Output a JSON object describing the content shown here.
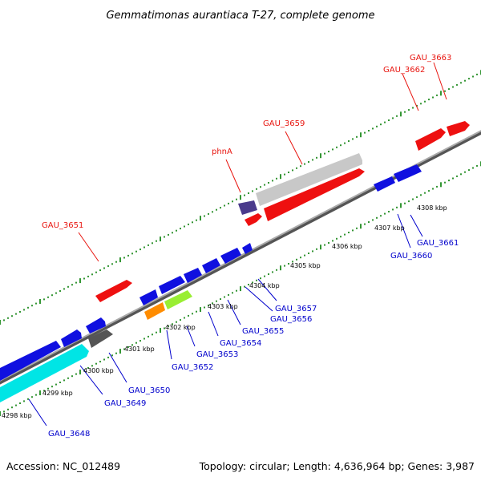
{
  "title": "Gemmatimonas aurantiaca T-27, complete genome",
  "footer": {
    "accession": "Accession: NC_012489",
    "topology": "Topology: circular; Length: 4,636,964 bp; Genes: 3,987"
  },
  "colors": {
    "forward_label": "#e8150f",
    "reverse_label": "#0000cc",
    "backbone": "#777777",
    "ticks": "#1f8a1f"
  },
  "ticks": [
    {
      "label": "4298 kbp"
    },
    {
      "label": "4299 kbp"
    },
    {
      "label": "4300 kbp"
    },
    {
      "label": "4301 kbp"
    },
    {
      "label": "4302 kbp"
    },
    {
      "label": "4303 kbp"
    },
    {
      "label": "4304 kbp"
    },
    {
      "label": "4305 kbp"
    },
    {
      "label": "4306 kbp"
    },
    {
      "label": "4307 kbp"
    },
    {
      "label": "4308 kbp"
    }
  ],
  "genes_forward": [
    {
      "label": "GAU_3651",
      "color": "#ee1010"
    },
    {
      "label": "phnA",
      "color": "#ee1010"
    },
    {
      "label": "GAU_3659",
      "color": "#c8c8c8"
    },
    {
      "label": "GAU_3662",
      "color": "#ee1010"
    },
    {
      "label": "GAU_3663",
      "color": "#ee1010"
    }
  ],
  "genes_reverse": [
    {
      "label": "GAU_3648",
      "color": "#00e5e5"
    },
    {
      "label": "GAU_3649",
      "color": "#1010e0"
    },
    {
      "label": "GAU_3650",
      "color": "#555555"
    },
    {
      "label": "GAU_3652",
      "color": "#ff8c00"
    },
    {
      "label": "GAU_3653",
      "color": "#99ee33"
    },
    {
      "label": "GAU_3654",
      "color": "#1010e0"
    },
    {
      "label": "GAU_3655",
      "color": "#1010e0"
    },
    {
      "label": "GAU_3656",
      "color": "#1010e0"
    },
    {
      "label": "GAU_3657",
      "color": "#1010e0"
    },
    {
      "label": "GAU_3660",
      "color": "#1010e0"
    },
    {
      "label": "GAU_3661",
      "color": "#1010e0"
    }
  ]
}
